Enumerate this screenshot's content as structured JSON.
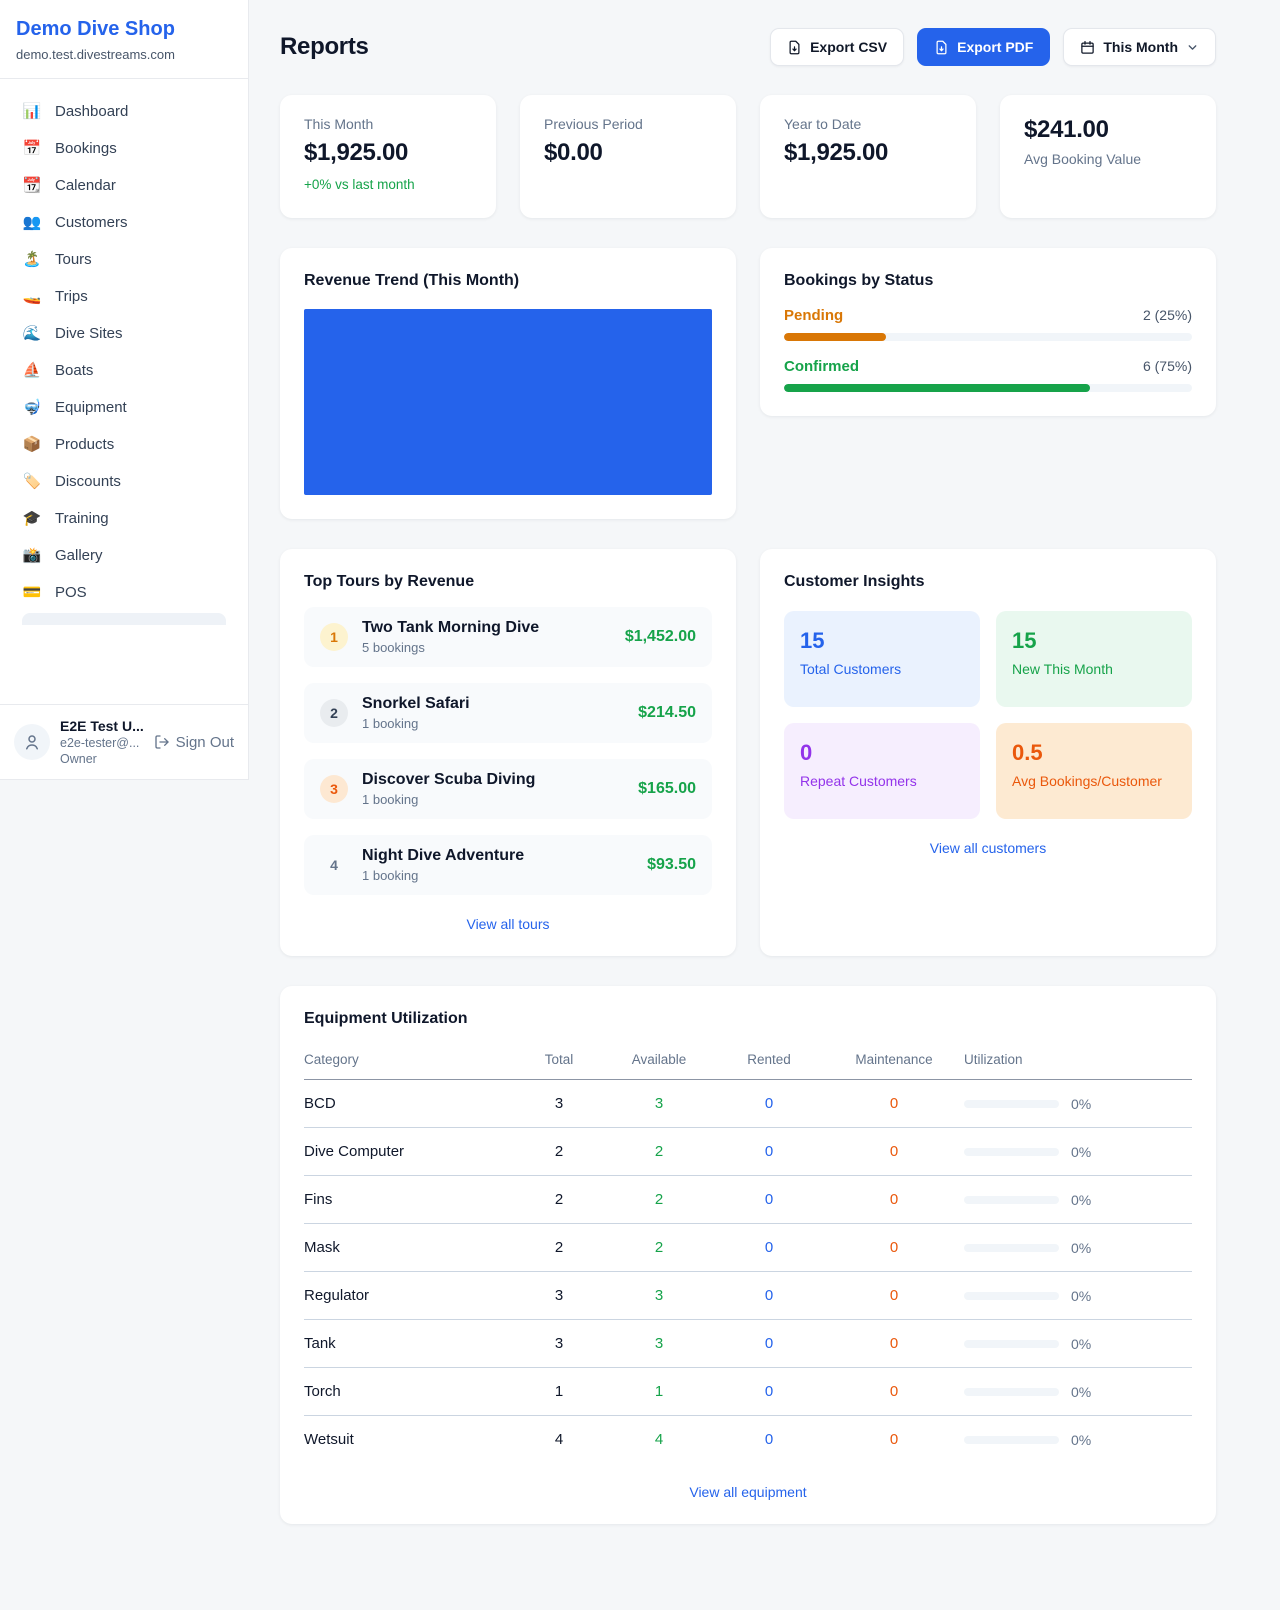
{
  "theme": {
    "accent": "#2563eb",
    "green": "#16a34a",
    "orange": "#d97706",
    "red_orange": "#ea580c",
    "purple": "#9333ea"
  },
  "sidebar": {
    "title": "Demo Dive Shop",
    "subtitle": "demo.test.divestreams.com",
    "items": [
      {
        "icon": "📊",
        "label": "Dashboard"
      },
      {
        "icon": "📅",
        "label": "Bookings"
      },
      {
        "icon": "📆",
        "label": "Calendar"
      },
      {
        "icon": "👥",
        "label": "Customers"
      },
      {
        "icon": "🏝️",
        "label": "Tours"
      },
      {
        "icon": "🚤",
        "label": "Trips"
      },
      {
        "icon": "🌊",
        "label": "Dive Sites"
      },
      {
        "icon": "⛵",
        "label": "Boats"
      },
      {
        "icon": "🤿",
        "label": "Equipment"
      },
      {
        "icon": "📦",
        "label": "Products"
      },
      {
        "icon": "🏷️",
        "label": "Discounts"
      },
      {
        "icon": "🎓",
        "label": "Training"
      },
      {
        "icon": "📸",
        "label": "Gallery"
      },
      {
        "icon": "💳",
        "label": "POS"
      }
    ],
    "user": {
      "name": "E2E Test U...",
      "email": "e2e-tester@...",
      "role": "Owner",
      "sign_out": "Sign Out"
    }
  },
  "header": {
    "title": "Reports",
    "export_csv": "Export CSV",
    "export_pdf": "Export PDF",
    "period": "This Month"
  },
  "stats": [
    {
      "label": "This Month",
      "value": "$1,925.00",
      "delta": "+0% vs last month",
      "delta_color": "#16a34a"
    },
    {
      "label": "Previous Period",
      "value": "$0.00"
    },
    {
      "label": "Year to Date",
      "value": "$1,925.00"
    },
    {
      "label": "Avg Booking Value",
      "value": "$241.00"
    }
  ],
  "revenue_trend": {
    "title": "Revenue Trend (This Month)",
    "type": "bar",
    "bar_color": "#2563eb",
    "note_bar_fills_full_plot": "100%"
  },
  "bookings_by_status": {
    "title": "Bookings by Status",
    "rows": [
      {
        "label": "Pending",
        "count": "2 (25%)",
        "pct": 25,
        "color": "#d97706"
      },
      {
        "label": "Confirmed",
        "count": "6 (75%)",
        "pct": 75,
        "color": "#16a34a"
      }
    ]
  },
  "top_tours": {
    "title": "Top Tours by Revenue",
    "amount_color": "#16a34a",
    "items": [
      {
        "rank": "1",
        "name": "Two Tank Morning Dive",
        "bookings": "5 bookings",
        "amount": "$1,452.00",
        "rank_color": "#d97706",
        "rank_bg": "#fdf3cf"
      },
      {
        "rank": "2",
        "name": "Snorkel Safari",
        "bookings": "1 booking",
        "amount": "$214.50",
        "rank_color": "#334155",
        "rank_bg": "#e9ecef"
      },
      {
        "rank": "3",
        "name": "Discover Scuba Diving",
        "bookings": "1 booking",
        "amount": "$165.00",
        "rank_color": "#ea580c",
        "rank_bg": "#fde8d2"
      },
      {
        "rank": "4",
        "name": "Night Dive Adventure",
        "bookings": "1 booking",
        "amount": "$93.50",
        "rank_color": "#64748b",
        "rank_bg": "transparent"
      }
    ],
    "view_all": "View all tours"
  },
  "customer_insights": {
    "title": "Customer Insights",
    "tiles": [
      {
        "value": "15",
        "label": "Total Customers",
        "color": "#2563eb",
        "bg": "#eaf2fe"
      },
      {
        "value": "15",
        "label": "New This Month",
        "color": "#16a34a",
        "bg": "#e9f8ef"
      },
      {
        "value": "0",
        "label": "Repeat Customers",
        "color": "#9333ea",
        "bg": "#f6eefe"
      },
      {
        "value": "0.5",
        "label": "Avg Bookings/Customer",
        "color": "#ea580c",
        "bg": "#fdead2"
      }
    ],
    "view_all": "View all customers"
  },
  "equipment": {
    "title": "Equipment Utilization",
    "columns": [
      "Category",
      "Total",
      "Available",
      "Rented",
      "Maintenance",
      "Utilization"
    ],
    "colors": {
      "available": "#16a34a",
      "rented": "#2563eb",
      "maintenance": "#ea580c"
    },
    "rows": [
      {
        "category": "BCD",
        "total": "3",
        "available": "3",
        "rented": "0",
        "maintenance": "0",
        "utilization": "0%"
      },
      {
        "category": "Dive Computer",
        "total": "2",
        "available": "2",
        "rented": "0",
        "maintenance": "0",
        "utilization": "0%"
      },
      {
        "category": "Fins",
        "total": "2",
        "available": "2",
        "rented": "0",
        "maintenance": "0",
        "utilization": "0%"
      },
      {
        "category": "Mask",
        "total": "2",
        "available": "2",
        "rented": "0",
        "maintenance": "0",
        "utilization": "0%"
      },
      {
        "category": "Regulator",
        "total": "3",
        "available": "3",
        "rented": "0",
        "maintenance": "0",
        "utilization": "0%"
      },
      {
        "category": "Tank",
        "total": "3",
        "available": "3",
        "rented": "0",
        "maintenance": "0",
        "utilization": "0%"
      },
      {
        "category": "Torch",
        "total": "1",
        "available": "1",
        "rented": "0",
        "maintenance": "0",
        "utilization": "0%"
      },
      {
        "category": "Wetsuit",
        "total": "4",
        "available": "4",
        "rented": "0",
        "maintenance": "0",
        "utilization": "0%"
      }
    ],
    "view_all": "View all equipment"
  }
}
